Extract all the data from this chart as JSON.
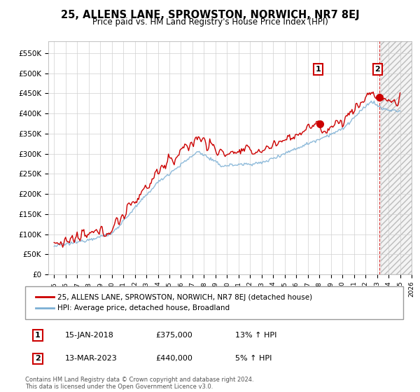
{
  "title": "25, ALLENS LANE, SPROWSTON, NORWICH, NR7 8EJ",
  "subtitle": "Price paid vs. HM Land Registry's House Price Index (HPI)",
  "ylabel_ticks": [
    "£0",
    "£50K",
    "£100K",
    "£150K",
    "£200K",
    "£250K",
    "£300K",
    "£350K",
    "£400K",
    "£450K",
    "£500K",
    "£550K"
  ],
  "ytick_vals": [
    0,
    50000,
    100000,
    150000,
    200000,
    250000,
    300000,
    350000,
    400000,
    450000,
    500000,
    550000
  ],
  "ylim": [
    0,
    580000
  ],
  "xlim_start": 1994.5,
  "xlim_end": 2026.0,
  "legend_line1": "25, ALLENS LANE, SPROWSTON, NORWICH, NR7 8EJ (detached house)",
  "legend_line2": "HPI: Average price, detached house, Broadland",
  "ann1_label": "1",
  "ann1_date": "15-JAN-2018",
  "ann1_price": "£375,000",
  "ann1_hpi": "13% ↑ HPI",
  "ann1_x": 2018.04,
  "ann1_y": 375000,
  "ann2_label": "2",
  "ann2_date": "13-MAR-2023",
  "ann2_price": "£440,000",
  "ann2_hpi": "5% ↑ HPI",
  "ann2_x": 2023.2,
  "ann2_y": 440000,
  "footer": "Contains HM Land Registry data © Crown copyright and database right 2024.\nThis data is licensed under the Open Government Licence v3.0.",
  "red_color": "#cc0000",
  "blue_color": "#7bafd4",
  "background_color": "#ffffff",
  "grid_color": "#d0d0d0",
  "future_start": 2023.3
}
